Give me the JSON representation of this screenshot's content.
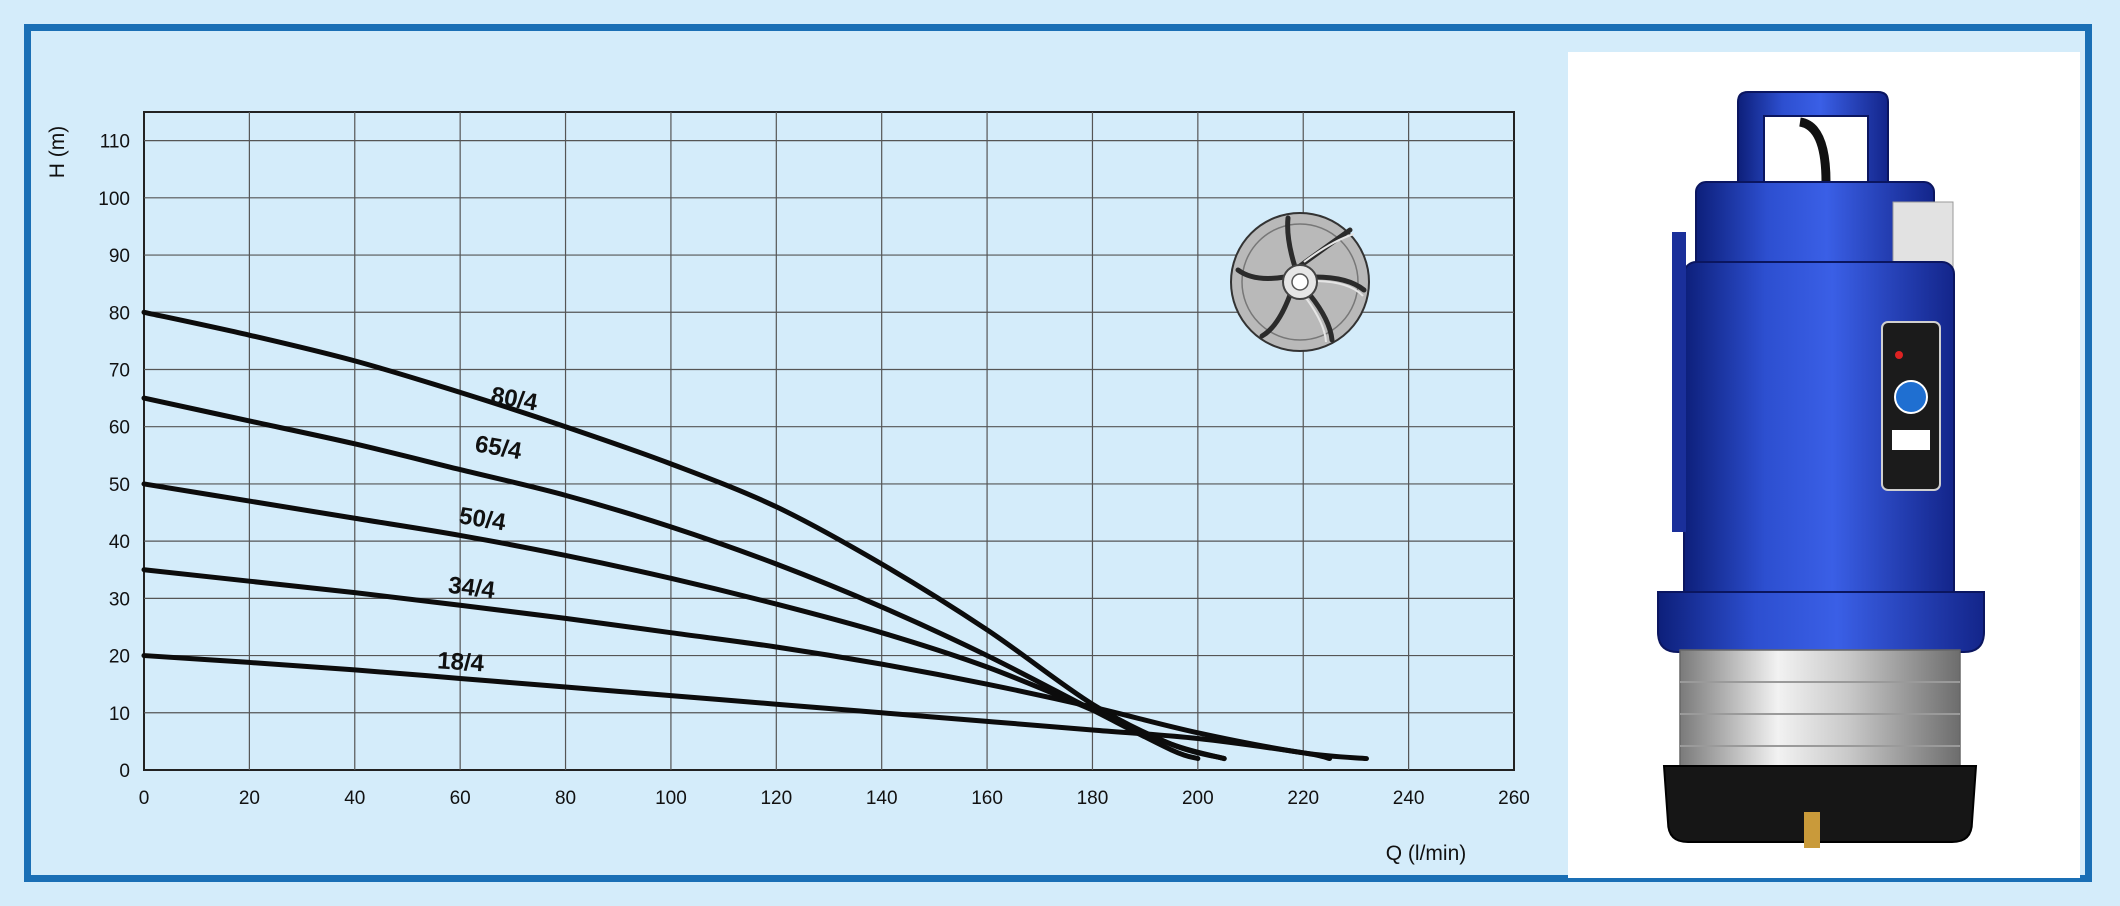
{
  "chart_data": {
    "type": "line",
    "xlabel": "Q (l/min)",
    "ylabel": "H (m)",
    "xlim": [
      0,
      260
    ],
    "ylim": [
      0,
      115
    ],
    "xticks": [
      0,
      20,
      40,
      60,
      80,
      100,
      120,
      140,
      160,
      180,
      200,
      220,
      240,
      260
    ],
    "yticks": [
      0,
      10,
      20,
      30,
      40,
      50,
      60,
      70,
      80,
      90,
      100,
      110
    ],
    "grid": true,
    "series": [
      {
        "name": "80/4",
        "x": [
          0,
          20,
          40,
          60,
          80,
          100,
          120,
          140,
          160,
          180,
          195,
          205
        ],
        "y": [
          80,
          76,
          71.5,
          66,
          60,
          53.5,
          46,
          36,
          24.5,
          11.5,
          4.5,
          2
        ]
      },
      {
        "name": "65/4",
        "x": [
          0,
          20,
          40,
          60,
          80,
          100,
          120,
          140,
          160,
          180,
          195,
          200
        ],
        "y": [
          65,
          61,
          57,
          52.5,
          48,
          42.5,
          36,
          28.5,
          20,
          10.5,
          3.5,
          2
        ]
      },
      {
        "name": "50/4",
        "x": [
          0,
          20,
          40,
          60,
          80,
          100,
          120,
          140,
          160,
          180,
          195,
          205
        ],
        "y": [
          50,
          47,
          44,
          41,
          37.5,
          33.5,
          29,
          24,
          18,
          10.5,
          4.5,
          2
        ]
      },
      {
        "name": "34/4",
        "x": [
          0,
          20,
          40,
          60,
          80,
          100,
          120,
          140,
          160,
          180,
          200,
          220,
          232
        ],
        "y": [
          35,
          33,
          31,
          28.8,
          26.5,
          24,
          21.5,
          18.5,
          15,
          11,
          6.5,
          3,
          2
        ]
      },
      {
        "name": "18/4",
        "x": [
          0,
          20,
          40,
          60,
          80,
          100,
          120,
          140,
          160,
          180,
          200,
          220,
          225
        ],
        "y": [
          20,
          18.8,
          17.5,
          16,
          14.5,
          13,
          11.5,
          10,
          8.5,
          7,
          5.5,
          3,
          2
        ]
      }
    ]
  },
  "images": {
    "impeller_icon": "impeller-icon",
    "product_photo": "submersible-pump-image"
  }
}
